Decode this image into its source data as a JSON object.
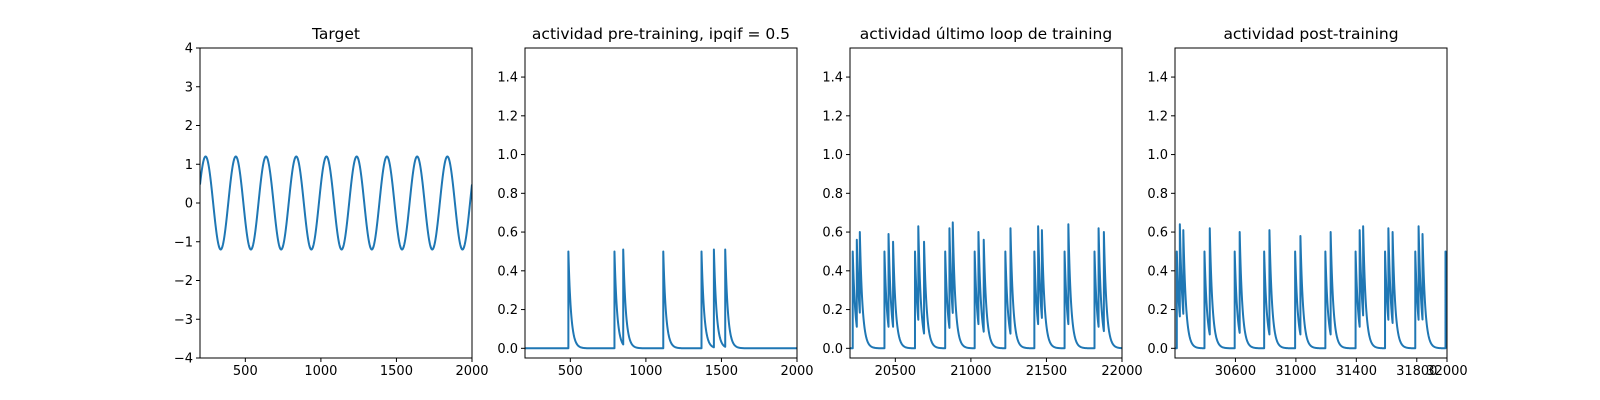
{
  "chart_data": [
    {
      "type": "line",
      "title": "Target",
      "xlabel": "",
      "ylabel": "",
      "xlim": [
        200,
        2000
      ],
      "ylim": [
        -4,
        4
      ],
      "xticks": [
        500,
        1000,
        1500,
        2000
      ],
      "yticks": [
        -4,
        -3,
        -2,
        -1,
        0,
        1,
        2,
        3,
        4
      ],
      "grid": false,
      "color": "#1f77b4",
      "series": [
        {
          "kind": "sine",
          "amplitude": 1.2,
          "period": 200,
          "peaks_x": [
            237,
            437,
            637,
            837,
            1037,
            1237,
            1437,
            1637,
            1837
          ],
          "x_start": 200,
          "x_end": 2000
        }
      ]
    },
    {
      "type": "line",
      "title": "actividad pre-training, ipqif = 0.5",
      "xlabel": "",
      "ylabel": "",
      "xlim": [
        200,
        2000
      ],
      "ylim": [
        -0.05,
        1.55
      ],
      "xticks": [
        500,
        1000,
        1500,
        2000
      ],
      "yticks": [
        0.0,
        0.2,
        0.4,
        0.6,
        0.8,
        1.0,
        1.2,
        1.4
      ],
      "grid": false,
      "color": "#1f77b4",
      "series": [
        {
          "kind": "spikes",
          "baseline": 0.0,
          "decay": 18,
          "spikes": [
            {
              "x": 487,
              "y": 0.5
            },
            {
              "x": 792,
              "y": 0.5
            },
            {
              "x": 850,
              "y": 0.51
            },
            {
              "x": 1115,
              "y": 0.5
            },
            {
              "x": 1368,
              "y": 0.5
            },
            {
              "x": 1450,
              "y": 0.51
            },
            {
              "x": 1525,
              "y": 0.51
            }
          ],
          "x_start": 200,
          "x_end": 2000
        }
      ]
    },
    {
      "type": "line",
      "title": "actividad último loop de training",
      "xlabel": "",
      "ylabel": "",
      "xlim": [
        20200,
        22000
      ],
      "ylim": [
        -0.05,
        1.55
      ],
      "xticks": [
        20500,
        21000,
        21500,
        22000
      ],
      "yticks": [
        0.0,
        0.2,
        0.4,
        0.6,
        0.8,
        1.0,
        1.2,
        1.4
      ],
      "grid": false,
      "color": "#1f77b4",
      "series": [
        {
          "kind": "spikes",
          "baseline": 0.0,
          "decay": 18,
          "spikes": [
            {
              "x": 20218,
              "y": 0.5
            },
            {
              "x": 20245,
              "y": 0.56
            },
            {
              "x": 20265,
              "y": 0.6
            },
            {
              "x": 20428,
              "y": 0.5
            },
            {
              "x": 20455,
              "y": 0.59
            },
            {
              "x": 20485,
              "y": 0.55
            },
            {
              "x": 20630,
              "y": 0.5
            },
            {
              "x": 20652,
              "y": 0.63
            },
            {
              "x": 20690,
              "y": 0.55
            },
            {
              "x": 20830,
              "y": 0.5
            },
            {
              "x": 20858,
              "y": 0.62
            },
            {
              "x": 20880,
              "y": 0.65
            },
            {
              "x": 21025,
              "y": 0.5
            },
            {
              "x": 21050,
              "y": 0.6
            },
            {
              "x": 21085,
              "y": 0.56
            },
            {
              "x": 21228,
              "y": 0.5
            },
            {
              "x": 21262,
              "y": 0.62
            },
            {
              "x": 21420,
              "y": 0.5
            },
            {
              "x": 21445,
              "y": 0.63
            },
            {
              "x": 21470,
              "y": 0.61
            },
            {
              "x": 21620,
              "y": 0.5
            },
            {
              "x": 21645,
              "y": 0.64
            },
            {
              "x": 21818,
              "y": 0.5
            },
            {
              "x": 21845,
              "y": 0.62
            },
            {
              "x": 21880,
              "y": 0.6
            }
          ],
          "x_start": 20200,
          "x_end": 22000
        }
      ]
    },
    {
      "type": "line",
      "title": "actividad post-training",
      "xlabel": "",
      "ylabel": "",
      "xlim": [
        30200,
        32000
      ],
      "ylim": [
        -0.05,
        1.55
      ],
      "xticks": [
        30600,
        31000,
        31400,
        31800,
        32000
      ],
      "yticks": [
        0.0,
        0.2,
        0.4,
        0.6,
        0.8,
        1.0,
        1.2,
        1.4
      ],
      "grid": false,
      "color": "#1f77b4",
      "series": [
        {
          "kind": "spikes",
          "baseline": 0.0,
          "decay": 18,
          "spikes": [
            {
              "x": 30212,
              "y": 0.5
            },
            {
              "x": 30232,
              "y": 0.64
            },
            {
              "x": 30255,
              "y": 0.61
            },
            {
              "x": 30395,
              "y": 0.5
            },
            {
              "x": 30430,
              "y": 0.62
            },
            {
              "x": 30595,
              "y": 0.5
            },
            {
              "x": 30628,
              "y": 0.6
            },
            {
              "x": 30790,
              "y": 0.5
            },
            {
              "x": 30825,
              "y": 0.61
            },
            {
              "x": 30995,
              "y": 0.5
            },
            {
              "x": 31030,
              "y": 0.58
            },
            {
              "x": 31195,
              "y": 0.5
            },
            {
              "x": 31230,
              "y": 0.6
            },
            {
              "x": 31395,
              "y": 0.5
            },
            {
              "x": 31422,
              "y": 0.61
            },
            {
              "x": 31445,
              "y": 0.63
            },
            {
              "x": 31590,
              "y": 0.5
            },
            {
              "x": 31612,
              "y": 0.62
            },
            {
              "x": 31640,
              "y": 0.6
            },
            {
              "x": 31790,
              "y": 0.5
            },
            {
              "x": 31812,
              "y": 0.63
            },
            {
              "x": 31838,
              "y": 0.59
            },
            {
              "x": 31990,
              "y": 0.5
            }
          ],
          "x_start": 30200,
          "x_end": 32000
        }
      ]
    }
  ]
}
